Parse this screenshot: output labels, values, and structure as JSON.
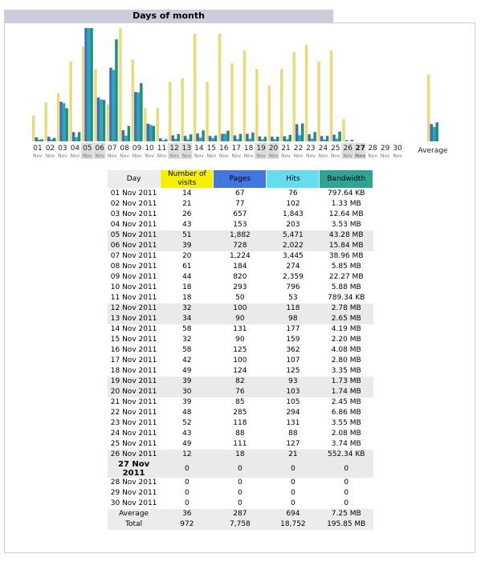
{
  "chart_data": {
    "type": "bar",
    "title": "Days of month",
    "categories": [
      "01",
      "02",
      "03",
      "04",
      "05",
      "06",
      "07",
      "08",
      "09",
      "10",
      "11",
      "12",
      "13",
      "14",
      "15",
      "16",
      "17",
      "18",
      "19",
      "20",
      "21",
      "22",
      "23",
      "24",
      "25",
      "26",
      "27",
      "28",
      "29",
      "30"
    ],
    "category_sublabels": [
      "Nov",
      "Nov",
      "Nov",
      "Nov",
      "Nov",
      "Nov",
      "Nov",
      "Nov",
      "Nov",
      "Nov",
      "Nov",
      "Nov",
      "Nov",
      "Nov",
      "Nov",
      "Nov",
      "Nov",
      "Nov",
      "Nov",
      "Nov",
      "Nov",
      "Nov",
      "Nov",
      "Nov",
      "Nov",
      "Nov",
      "Nov",
      "Nov",
      "Nov",
      "Nov"
    ],
    "weekend_days": [
      "05",
      "06",
      "12",
      "13",
      "19",
      "20",
      "26",
      "27"
    ],
    "current_day": "27",
    "series": [
      {
        "name": "Number of visits",
        "color": "#e8dc7a",
        "header_color": "#f4f000",
        "values": [
          14,
          21,
          26,
          43,
          51,
          39,
          20,
          61,
          44,
          18,
          18,
          32,
          34,
          58,
          32,
          58,
          42,
          49,
          39,
          30,
          39,
          48,
          52,
          43,
          49,
          12,
          0,
          0,
          0,
          0
        ]
      },
      {
        "name": "Pages",
        "color": "#3c6cc8",
        "header_color": "#4477dd",
        "values": [
          67,
          77,
          657,
          153,
          1882,
          728,
          1224,
          184,
          820,
          293,
          50,
          100,
          90,
          131,
          90,
          125,
          100,
          124,
          82,
          76,
          85,
          285,
          118,
          88,
          111,
          18,
          0,
          0,
          0,
          0
        ],
        "value_labels": [
          "67",
          "77",
          "657",
          "153",
          "1,882",
          "728",
          "1,224",
          "184",
          "820",
          "293",
          "50",
          "100",
          "90",
          "131",
          "90",
          "125",
          "100",
          "124",
          "82",
          "76",
          "85",
          "285",
          "118",
          "88",
          "111",
          "18",
          "0",
          "0",
          "0",
          "0"
        ]
      },
      {
        "name": "Hits",
        "color": "#2aa7b8",
        "header_color": "#66ddee",
        "values": [
          76,
          102,
          1843,
          203,
          5471,
          2022,
          3445,
          274,
          2359,
          796,
          53,
          118,
          98,
          177,
          159,
          362,
          107,
          125,
          93,
          103,
          105,
          294,
          131,
          88,
          127,
          21,
          0,
          0,
          0,
          0
        ],
        "value_labels": [
          "76",
          "102",
          "1,843",
          "203",
          "5,471",
          "2,022",
          "3,445",
          "274",
          "2,359",
          "796",
          "53",
          "118",
          "98",
          "177",
          "159",
          "362",
          "107",
          "125",
          "93",
          "103",
          "105",
          "294",
          "131",
          "88",
          "127",
          "21",
          "0",
          "0",
          "0",
          "0"
        ]
      },
      {
        "name": "Bandwidth",
        "color": "#1f8f7a",
        "header_color": "#2ea495",
        "values": [
          797.64,
          1361.92,
          12943.36,
          3614.72,
          44318.72,
          16220.16,
          39895.04,
          5990.4,
          22804.48,
          6021.12,
          789.34,
          2846.72,
          2713.6,
          4290.56,
          2252.8,
          4177.92,
          2867.2,
          3430.4,
          1771.52,
          1781.76,
          2508.8,
          7024.64,
          3635.2,
          2129.92,
          3829.76,
          552.34,
          0,
          0,
          0,
          0
        ],
        "value_labels": [
          "797.64 KB",
          "1.33 MB",
          "12.64 MB",
          "3.53 MB",
          "43.28 MB",
          "15.84 MB",
          "38.96 MB",
          "5.85 MB",
          "22.27 MB",
          "5.88 MB",
          "789.34 KB",
          "2.78 MB",
          "2.65 MB",
          "4.19 MB",
          "2.20 MB",
          "4.08 MB",
          "2.80 MB",
          "3.35 MB",
          "1.73 MB",
          "1.74 MB",
          "2.45 MB",
          "6.86 MB",
          "3.55 MB",
          "2.08 MB",
          "3.74 MB",
          "552.34 KB",
          "0",
          "0",
          "0",
          "0"
        ]
      }
    ],
    "average": {
      "label": "Average",
      "values": [
        36,
        287,
        694,
        {
          "value": 7424,
          "label": "7.25 MB"
        }
      ]
    },
    "total": {
      "label": "Total",
      "values": [
        972,
        {
          "value": 7758,
          "label": "7,758"
        },
        {
          "value": 18752,
          "label": "18,752"
        },
        {
          "value": 200550.4,
          "label": "195.85 MB"
        }
      ]
    }
  },
  "table": {
    "header_day": "Day",
    "days": [
      "01 Nov 2011",
      "02 Nov 2011",
      "03 Nov 2011",
      "04 Nov 2011",
      "05 Nov 2011",
      "06 Nov 2011",
      "07 Nov 2011",
      "08 Nov 2011",
      "09 Nov 2011",
      "10 Nov 2011",
      "11 Nov 2011",
      "12 Nov 2011",
      "13 Nov 2011",
      "14 Nov 2011",
      "15 Nov 2011",
      "16 Nov 2011",
      "17 Nov 2011",
      "18 Nov 2011",
      "19 Nov 2011",
      "20 Nov 2011",
      "21 Nov 2011",
      "22 Nov 2011",
      "23 Nov 2011",
      "24 Nov 2011",
      "25 Nov 2011",
      "26 Nov 2011",
      "27 Nov 2011",
      "28 Nov 2011",
      "29 Nov 2011",
      "30 Nov 2011"
    ]
  }
}
